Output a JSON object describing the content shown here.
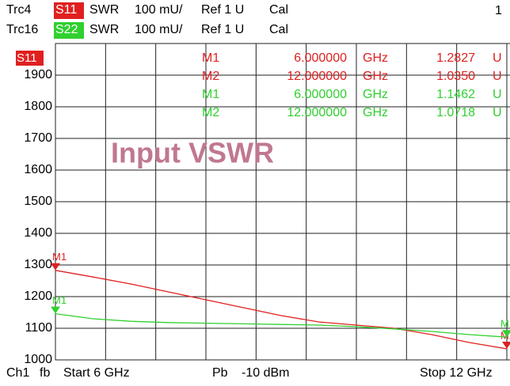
{
  "header": {
    "rows": [
      {
        "trace": "Trc4",
        "param": "S11",
        "format": "SWR",
        "scale": "100 mU/",
        "ref": "Ref 1 U",
        "cal": "Cal",
        "color": "#e02020"
      },
      {
        "trace": "Trc16",
        "param": "S22",
        "format": "SWR",
        "scale": "100 mU/",
        "ref": "Ref 1 U",
        "cal": "Cal",
        "color": "#30d030"
      }
    ],
    "corner": "1"
  },
  "footer": {
    "channel": "Ch1",
    "mode": "fb",
    "start": "Start 6 GHz",
    "power_mode": "Pb",
    "power": "-10 dBm",
    "stop": "Stop 12 GHz"
  },
  "chart_data": {
    "type": "line",
    "title": "Input VSWR",
    "active_trace": "S11",
    "x": [
      6,
      6.5,
      7,
      7.5,
      8,
      8.5,
      9,
      9.5,
      10,
      10.5,
      11,
      11.5,
      12
    ],
    "xlim": [
      6,
      12
    ],
    "ylim": [
      1000,
      2000
    ],
    "yticks": [
      1000,
      1100,
      1200,
      1300,
      1400,
      1500,
      1600,
      1700,
      1800,
      1900
    ],
    "grid": true,
    "series": [
      {
        "name": "S11",
        "color": "#e02020",
        "marker_labels": [
          "M1",
          "M2"
        ],
        "values": [
          1283,
          1262,
          1240,
          1215,
          1190,
          1165,
          1140,
          1120,
          1110,
          1100,
          1080,
          1055,
          1035
        ]
      },
      {
        "name": "S22",
        "color": "#30d030",
        "marker_labels": [
          "M1",
          "M2"
        ],
        "values": [
          1146,
          1130,
          1122,
          1118,
          1116,
          1114,
          1112,
          1110,
          1105,
          1098,
          1090,
          1080,
          1072
        ]
      }
    ],
    "marker_table": [
      {
        "name": "M1",
        "x": "6.000000",
        "unit": "GHz",
        "value": "1.2827",
        "vunit": "U",
        "color": "#e02020"
      },
      {
        "name": "M2",
        "x": "12.000000",
        "unit": "GHz",
        "value": "1.0350",
        "vunit": "U",
        "color": "#e02020"
      },
      {
        "name": "M1",
        "x": "6.000000",
        "unit": "GHz",
        "value": "1.1462",
        "vunit": "U",
        "color": "#30d030"
      },
      {
        "name": "M2",
        "x": "12.000000",
        "unit": "GHz",
        "value": "1.0718",
        "vunit": "U",
        "color": "#30d030"
      }
    ]
  }
}
